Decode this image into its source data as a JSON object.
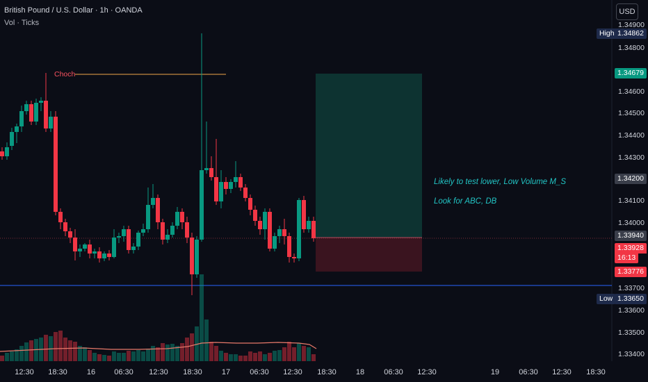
{
  "header": {
    "symbol": "British Pound / U.S. Dollar · 1h · OANDA",
    "indicator": "Vol · Ticks",
    "currency_button": "USD"
  },
  "price_axis": {
    "ticks": [
      "1.34900",
      "1.34800",
      "1.34600",
      "1.34500",
      "1.34400",
      "1.34300",
      "1.34100",
      "1.34000",
      "1.33700",
      "1.33600",
      "1.33500",
      "1.33400"
    ],
    "high": {
      "label": "High",
      "value": "1.34862"
    },
    "low": {
      "label": "Low",
      "value": "1.33650"
    },
    "target_price": "1.34679",
    "gray_price": "1.34200",
    "entry_price": "1.33940",
    "last_price": "1.33928",
    "countdown": "16:13",
    "stop_price": "1.33776"
  },
  "time_axis": {
    "ticks": [
      "12:30",
      "18:30",
      "16",
      "06:30",
      "12:30",
      "18:30",
      "17",
      "06:30",
      "12:30",
      "18:30",
      "18",
      "06:30",
      "12:30",
      "19",
      "06:30",
      "12:30",
      "18:30"
    ]
  },
  "annotations": {
    "choch": "Choch",
    "note1": "Likely to test lower, Low Volume M_S",
    "note2": "Look for ABC, DB"
  },
  "colors": {
    "bg": "#0b0d16",
    "up": "#089981",
    "down": "#f23645",
    "target_zone": "#0e3b36",
    "stop_zone": "#3d1520",
    "blue_line": "#2962ff",
    "annotation": "#22c4c4"
  }
}
